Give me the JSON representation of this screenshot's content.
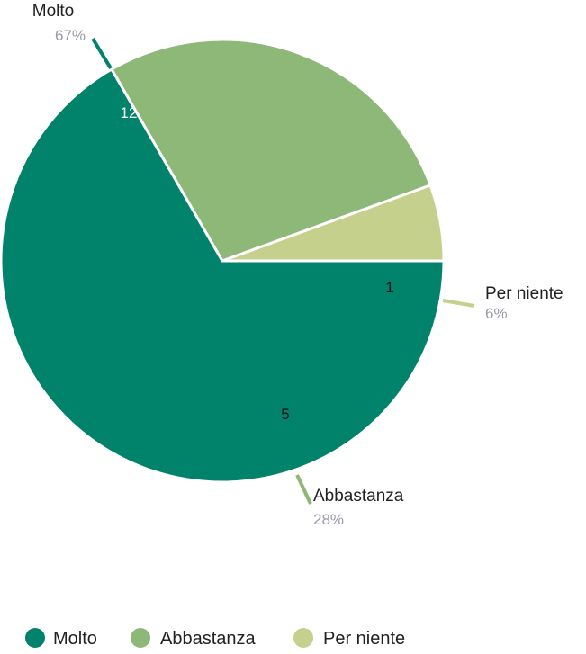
{
  "chart_data": {
    "type": "pie",
    "categories": [
      "Molto",
      "Abbastanza",
      "Per niente"
    ],
    "values": [
      12,
      5,
      1
    ],
    "percent_labels": [
      "67%",
      "28%",
      "6%"
    ],
    "colors": [
      "#00836a",
      "#8db878",
      "#c4d08c"
    ],
    "value_label_colors": [
      "#ffffff",
      "#111111",
      "#111111"
    ],
    "start_angle_deg": 0,
    "direction": "clockwise",
    "legend": {
      "position": "bottom",
      "items": [
        "Molto",
        "Abbastanza",
        "Per niente"
      ]
    }
  }
}
